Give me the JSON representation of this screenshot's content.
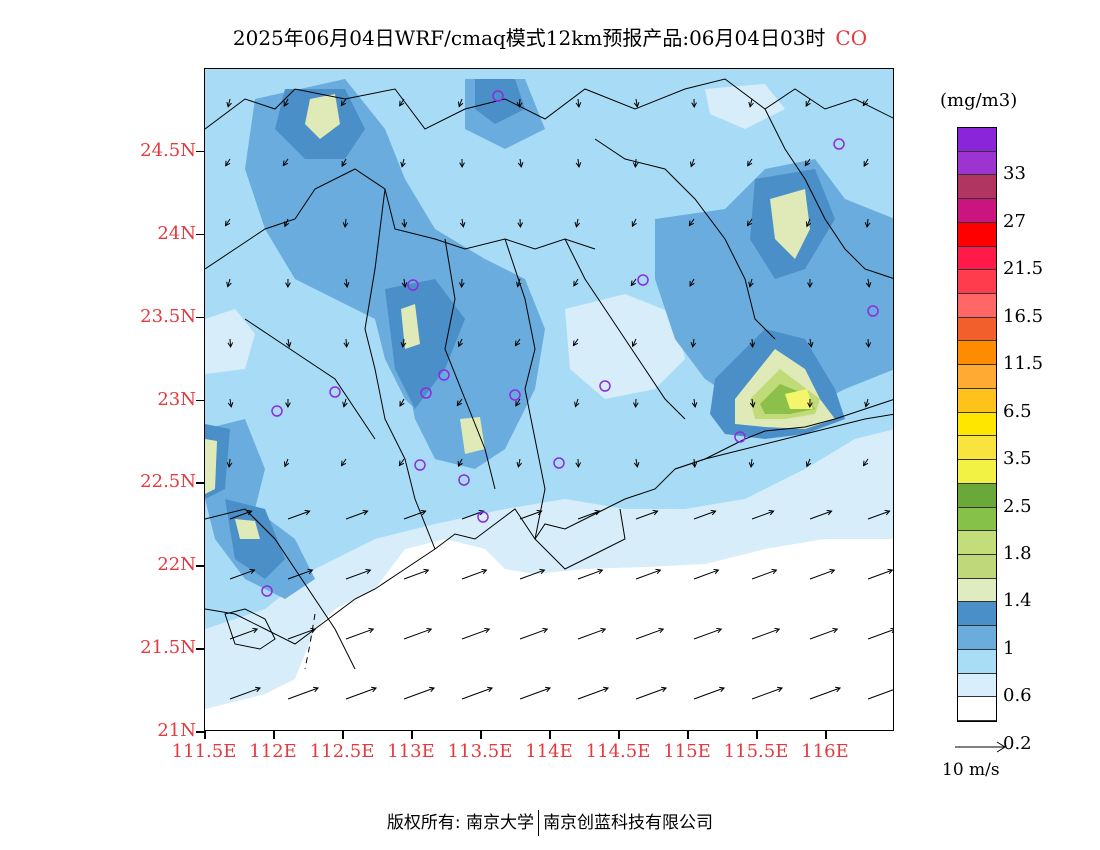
{
  "title": {
    "text": "2025年06月04日WRF/cmaq模式12km预报产品:06月04日03时",
    "species": "CO"
  },
  "map": {
    "lat_labels": [
      "24.5N",
      "24N",
      "23.5N",
      "23N",
      "22.5N",
      "22N",
      "21.5N",
      "21N"
    ],
    "lon_labels": [
      "111.5E",
      "112E",
      "112.5E",
      "113E",
      "113.5E",
      "114E",
      "114.5E",
      "115E",
      "115.5E",
      "116E"
    ],
    "lon_range": [
      111.5,
      116.5
    ],
    "lat_range": [
      21.0,
      25.0
    ],
    "fill_colors": {
      "ocean": "#ffffff",
      "band_0_2": "#d7eefa",
      "band_0_6": "#a8dcf6",
      "band_0_8": "#69acdd",
      "band_1": "#4a8fc7",
      "band_1_2": "#dfeab8",
      "band_1_4": "#c0db78",
      "band_1_8": "#8cc04a",
      "band_2_5": "#f4f56b"
    },
    "station_color": "#8d2be0"
  },
  "colorbar": {
    "unit": "(mg/m3)",
    "labels": [
      "33",
      "27",
      "21.5",
      "16.5",
      "11.5",
      "6.5",
      "3.5",
      "2.5",
      "1.8",
      "1.4",
      "1",
      "0.6",
      "0.2"
    ],
    "colors": [
      "#8b25d9",
      "#9d33d1",
      "#b03560",
      "#c9157d",
      "#ff0000",
      "#ff1a4a",
      "#ff3b4e",
      "#ff6666",
      "#f25f2d",
      "#ff8c00",
      "#ffaa33",
      "#ffc21a",
      "#ffe600",
      "#f8e43c",
      "#f2f245",
      "#6aa83a",
      "#86c24a",
      "#c2dd7a",
      "#bfd87a",
      "#e0ebc0",
      "#4a8fc7",
      "#6aacdc",
      "#a9dcf5",
      "#d8eefa",
      "#ffffff"
    ]
  },
  "wind_key": {
    "label": "10 m/s"
  },
  "copyright": {
    "left": "版权所有: 南京大学",
    "right": "南京创蓝科技有限公司"
  }
}
